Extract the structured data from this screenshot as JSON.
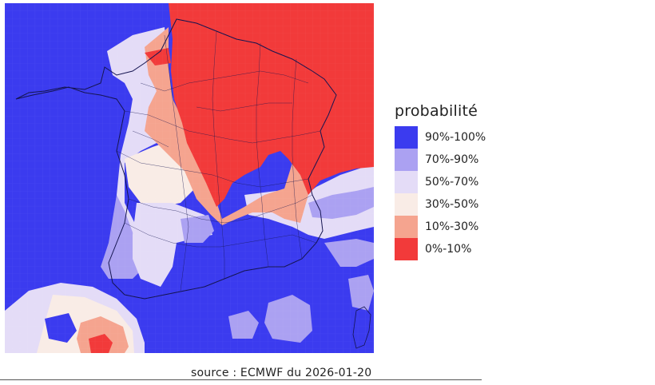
{
  "legend": {
    "title": "probabilité",
    "items": [
      {
        "label": "90%-100%",
        "color": "#3b3bef"
      },
      {
        "label": "70%-90%",
        "color": "#aba1f2"
      },
      {
        "label": "50%-70%",
        "color": "#e4dcf7"
      },
      {
        "label": "30%-50%",
        "color": "#f9ece6"
      },
      {
        "label": "10%-30%",
        "color": "#f5a48f"
      },
      {
        "label": "0%-10%",
        "color": "#f23a3a"
      }
    ]
  },
  "source": "source : ECMWF du 2026-01-20"
}
